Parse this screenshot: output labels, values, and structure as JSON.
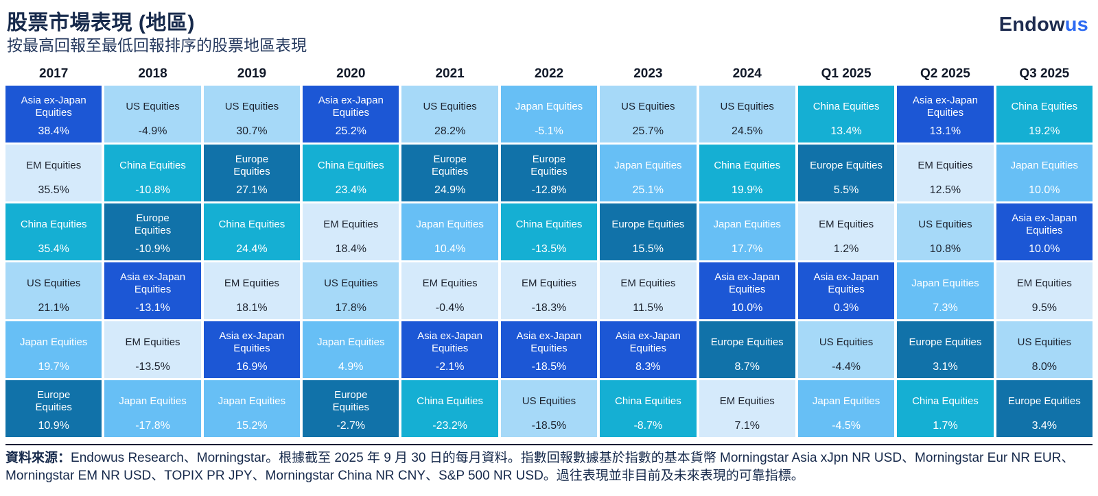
{
  "header": {
    "title": "股票市場表現 (地區)",
    "subtitle": "按最高回報至最低回報排序的股票地區表現"
  },
  "logo": {
    "part1": "Endow",
    "part2": "us"
  },
  "asset_colors": {
    "asia": {
      "bg": "#1C57D5",
      "text": "#FFFFFF"
    },
    "us": {
      "bg": "#A6D9F8",
      "text": "#1E2430"
    },
    "em": {
      "bg": "#D5EAFB",
      "text": "#1E2430"
    },
    "china": {
      "bg": "#15AFD3",
      "text": "#FFFFFF"
    },
    "europe": {
      "bg": "#1172A9",
      "text": "#FFFFFF"
    },
    "japan": {
      "bg": "#67BFF5",
      "text": "#FFFFFF"
    }
  },
  "chart_data": {
    "type": "table",
    "title": "股票市場表現 (地區)",
    "subtitle": "按最高回報至最低回報排序的股票地區表現",
    "layout_note": "Each column ranks regional equity returns from highest to lowest; cell color encodes asset class.",
    "columns": [
      {
        "period": "2017",
        "ranking": [
          {
            "asset": "asia",
            "label": "Asia ex-Japan\nEquities",
            "value": 38.4,
            "text": "38.4%"
          },
          {
            "asset": "em",
            "label": "EM Equities",
            "value": 35.5,
            "text": "35.5%"
          },
          {
            "asset": "china",
            "label": "China Equities",
            "value": 35.4,
            "text": "35.4%"
          },
          {
            "asset": "us",
            "label": "US Equities",
            "value": 21.1,
            "text": "21.1%"
          },
          {
            "asset": "japan",
            "label": "Japan Equities",
            "value": 19.7,
            "text": "19.7%"
          },
          {
            "asset": "europe",
            "label": "Europe\nEquities",
            "value": 10.9,
            "text": "10.9%"
          }
        ]
      },
      {
        "period": "2018",
        "ranking": [
          {
            "asset": "us",
            "label": "US Equities",
            "value": -4.9,
            "text": "-4.9%"
          },
          {
            "asset": "china",
            "label": "China Equities",
            "value": -10.8,
            "text": "-10.8%"
          },
          {
            "asset": "europe",
            "label": "Europe\nEquities",
            "value": -10.9,
            "text": "-10.9%"
          },
          {
            "asset": "asia",
            "label": "Asia ex-Japan\nEquities",
            "value": -13.1,
            "text": "-13.1%"
          },
          {
            "asset": "em",
            "label": "EM Equities",
            "value": -13.5,
            "text": "-13.5%"
          },
          {
            "asset": "japan",
            "label": "Japan Equities",
            "value": -17.8,
            "text": "-17.8%"
          }
        ]
      },
      {
        "period": "2019",
        "ranking": [
          {
            "asset": "us",
            "label": "US Equities",
            "value": 30.7,
            "text": "30.7%"
          },
          {
            "asset": "europe",
            "label": "Europe\nEquities",
            "value": 27.1,
            "text": "27.1%"
          },
          {
            "asset": "china",
            "label": "China Equities",
            "value": 24.4,
            "text": "24.4%"
          },
          {
            "asset": "em",
            "label": "EM Equities",
            "value": 18.1,
            "text": "18.1%"
          },
          {
            "asset": "asia",
            "label": "Asia ex-Japan\nEquities",
            "value": 16.9,
            "text": "16.9%"
          },
          {
            "asset": "japan",
            "label": "Japan Equities",
            "value": 15.2,
            "text": "15.2%"
          }
        ]
      },
      {
        "period": "2020",
        "ranking": [
          {
            "asset": "asia",
            "label": "Asia ex-Japan\nEquities",
            "value": 25.2,
            "text": "25.2%"
          },
          {
            "asset": "china",
            "label": "China Equities",
            "value": 23.4,
            "text": "23.4%"
          },
          {
            "asset": "em",
            "label": "EM Equities",
            "value": 18.4,
            "text": "18.4%"
          },
          {
            "asset": "us",
            "label": "US Equities",
            "value": 17.8,
            "text": "17.8%"
          },
          {
            "asset": "japan",
            "label": "Japan Equities",
            "value": 4.9,
            "text": "4.9%"
          },
          {
            "asset": "europe",
            "label": "Europe\nEquities",
            "value": -2.7,
            "text": "-2.7%"
          }
        ]
      },
      {
        "period": "2021",
        "ranking": [
          {
            "asset": "us",
            "label": "US Equities",
            "value": 28.2,
            "text": "28.2%"
          },
          {
            "asset": "europe",
            "label": "Europe\nEquities",
            "value": 24.9,
            "text": "24.9%"
          },
          {
            "asset": "japan",
            "label": "Japan Equities",
            "value": 10.4,
            "text": "10.4%"
          },
          {
            "asset": "em",
            "label": "EM Equities",
            "value": -0.4,
            "text": "-0.4%"
          },
          {
            "asset": "asia",
            "label": "Asia ex-Japan\nEquities",
            "value": -2.1,
            "text": "-2.1%"
          },
          {
            "asset": "china",
            "label": "China Equities",
            "value": -23.2,
            "text": "-23.2%"
          }
        ]
      },
      {
        "period": "2022",
        "ranking": [
          {
            "asset": "japan",
            "label": "Japan Equities",
            "value": -5.1,
            "text": "-5.1%"
          },
          {
            "asset": "europe",
            "label": "Europe\nEquities",
            "value": -12.8,
            "text": "-12.8%"
          },
          {
            "asset": "china",
            "label": "China Equities",
            "value": -13.5,
            "text": "-13.5%"
          },
          {
            "asset": "em",
            "label": "EM Equities",
            "value": -18.3,
            "text": "-18.3%"
          },
          {
            "asset": "asia",
            "label": "Asia ex-Japan\nEquities",
            "value": -18.5,
            "text": "-18.5%"
          },
          {
            "asset": "us",
            "label": "US Equities",
            "value": -18.5,
            "text": "-18.5%"
          }
        ]
      },
      {
        "period": "2023",
        "ranking": [
          {
            "asset": "us",
            "label": "US Equities",
            "value": 25.7,
            "text": "25.7%"
          },
          {
            "asset": "japan",
            "label": "Japan Equities",
            "value": 25.1,
            "text": "25.1%"
          },
          {
            "asset": "europe",
            "label": "Europe Equities",
            "value": 15.5,
            "text": "15.5%"
          },
          {
            "asset": "em",
            "label": "EM Equities",
            "value": 11.5,
            "text": "11.5%"
          },
          {
            "asset": "asia",
            "label": "Asia ex-Japan\nEquities",
            "value": 8.3,
            "text": "8.3%"
          },
          {
            "asset": "china",
            "label": "China Equities",
            "value": -8.7,
            "text": "-8.7%"
          }
        ]
      },
      {
        "period": "2024",
        "ranking": [
          {
            "asset": "us",
            "label": "US Equities",
            "value": 24.5,
            "text": "24.5%"
          },
          {
            "asset": "china",
            "label": "China Equities",
            "value": 19.9,
            "text": "19.9%"
          },
          {
            "asset": "japan",
            "label": "Japan Equities",
            "value": 17.7,
            "text": "17.7%"
          },
          {
            "asset": "asia",
            "label": "Asia ex-Japan\nEquities",
            "value": 10.0,
            "text": "10.0%"
          },
          {
            "asset": "europe",
            "label": "Europe Equities",
            "value": 8.7,
            "text": "8.7%"
          },
          {
            "asset": "em",
            "label": "EM Equities",
            "value": 7.1,
            "text": "7.1%"
          }
        ]
      },
      {
        "period": "Q1 2025",
        "ranking": [
          {
            "asset": "china",
            "label": "China Equities",
            "value": 13.4,
            "text": "13.4%"
          },
          {
            "asset": "europe",
            "label": "Europe Equities",
            "value": 5.5,
            "text": "5.5%"
          },
          {
            "asset": "em",
            "label": "EM Equities",
            "value": 1.2,
            "text": "1.2%"
          },
          {
            "asset": "asia",
            "label": "Asia ex-Japan\nEquities",
            "value": 0.3,
            "text": "0.3%"
          },
          {
            "asset": "us",
            "label": "US Equities",
            "value": -4.4,
            "text": "-4.4%"
          },
          {
            "asset": "japan",
            "label": "Japan Equities",
            "value": -4.5,
            "text": "-4.5%"
          }
        ]
      },
      {
        "period": "Q2 2025",
        "ranking": [
          {
            "asset": "asia",
            "label": "Asia ex-Japan\nEquities",
            "value": 13.1,
            "text": "13.1%"
          },
          {
            "asset": "em",
            "label": "EM Equities",
            "value": 12.5,
            "text": "12.5%"
          },
          {
            "asset": "us",
            "label": "US Equities",
            "value": 10.8,
            "text": "10.8%"
          },
          {
            "asset": "japan",
            "label": "Japan Equities",
            "value": 7.3,
            "text": "7.3%"
          },
          {
            "asset": "europe",
            "label": "Europe Equities",
            "value": 3.1,
            "text": "3.1%"
          },
          {
            "asset": "china",
            "label": "China Equities",
            "value": 1.7,
            "text": "1.7%"
          }
        ]
      },
      {
        "period": "Q3 2025",
        "ranking": [
          {
            "asset": "china",
            "label": "China Equities",
            "value": 19.2,
            "text": "19.2%"
          },
          {
            "asset": "japan",
            "label": "Japan Equities",
            "value": 10.0,
            "text": "10.0%"
          },
          {
            "asset": "asia",
            "label": "Asia ex-Japan\nEquities",
            "value": 10.0,
            "text": "10.0%"
          },
          {
            "asset": "em",
            "label": "EM Equities",
            "value": 9.5,
            "text": "9.5%"
          },
          {
            "asset": "us",
            "label": "US Equities",
            "value": 8.0,
            "text": "8.0%"
          },
          {
            "asset": "europe",
            "label": "Europe Equities",
            "value": 3.4,
            "text": "3.4%"
          }
        ]
      }
    ]
  },
  "footer": {
    "source_label": "資料來源：",
    "text": "Endowus Research、Morningstar。根據截至 2025 年 9 月 30 日的每月資料。指數回報數據基於指數的基本貨幣 Morningstar Asia xJpn NR USD、Morningstar Eur NR EUR、Morningstar EM NR USD、TOPIX PR JPY、Morningstar China NR CNY、S&P 500 NR USD。過往表現並非目前及未來表現的可靠指標。"
  }
}
